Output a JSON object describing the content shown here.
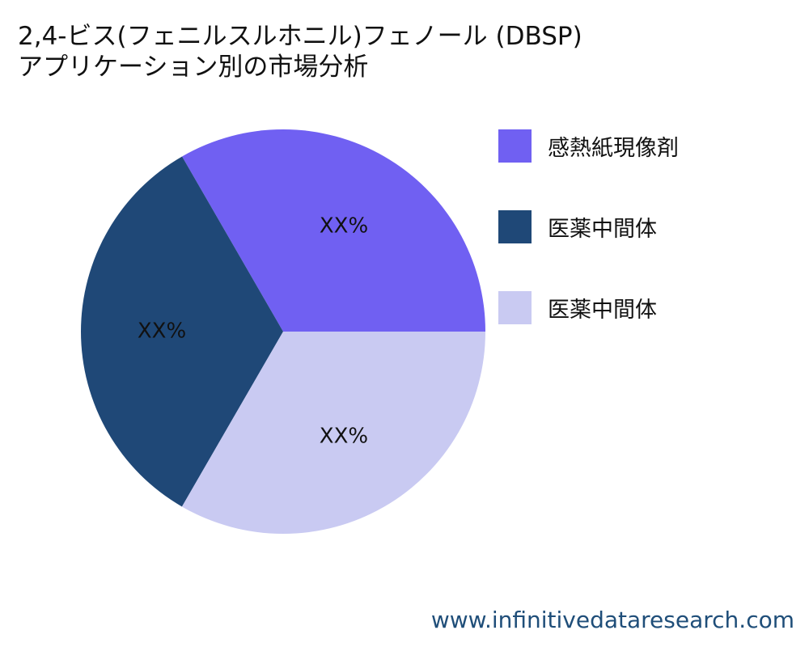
{
  "title": {
    "line1": "2,4-ビス(フェニルスルホニル)フェノール (DBSP)",
    "line2": "アプリケーション別の市場分析"
  },
  "source": "www.infinitivedataresearch.com",
  "chart_data": {
    "type": "pie",
    "title": "2,4-ビス(フェニルスルホニル)フェノール (DBSP) アプリケーション別の市場分析",
    "start_angle_deg": 0,
    "direction": "counterclockwise",
    "slices": [
      {
        "name": "感熱紙現像剤",
        "value": 33.33,
        "label": "XX%",
        "color": "#7060f2"
      },
      {
        "name": "医薬中間体",
        "value": 33.33,
        "label": "XX%",
        "color": "#1f4877"
      },
      {
        "name": "医薬中間体",
        "value": 33.34,
        "label": "XX%",
        "color": "#c9caf2"
      }
    ],
    "legend": {
      "position": "right"
    }
  }
}
